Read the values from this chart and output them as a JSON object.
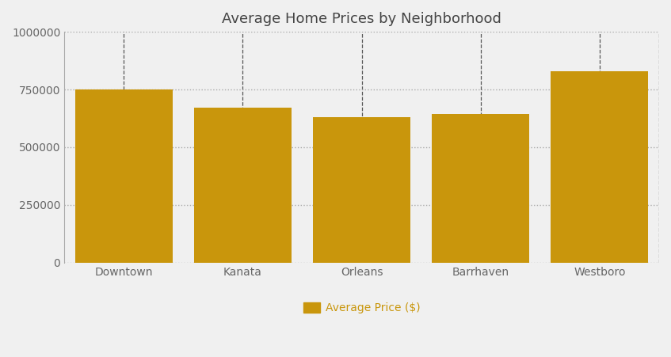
{
  "title": "Average Home Prices by Neighborhood",
  "categories": [
    "Downtown",
    "Kanata",
    "Orleans",
    "Barrhaven",
    "Westboro"
  ],
  "values": [
    750000,
    670000,
    630000,
    645000,
    830000
  ],
  "bar_color": "#C9960C",
  "legend_label": "Average Price ($)",
  "ylim": [
    0,
    1000000
  ],
  "yticks": [
    0,
    250000,
    500000,
    750000,
    1000000
  ],
  "background_color": "#F0F0F0",
  "plot_bg_color": "#F0F0F0",
  "title_fontsize": 13,
  "tick_fontsize": 10,
  "legend_fontsize": 10,
  "bar_width": 0.82,
  "hgrid_color": "#AAAAAA",
  "vgrid_color": "#555555",
  "title_color": "#444444",
  "tick_color": "#666666"
}
